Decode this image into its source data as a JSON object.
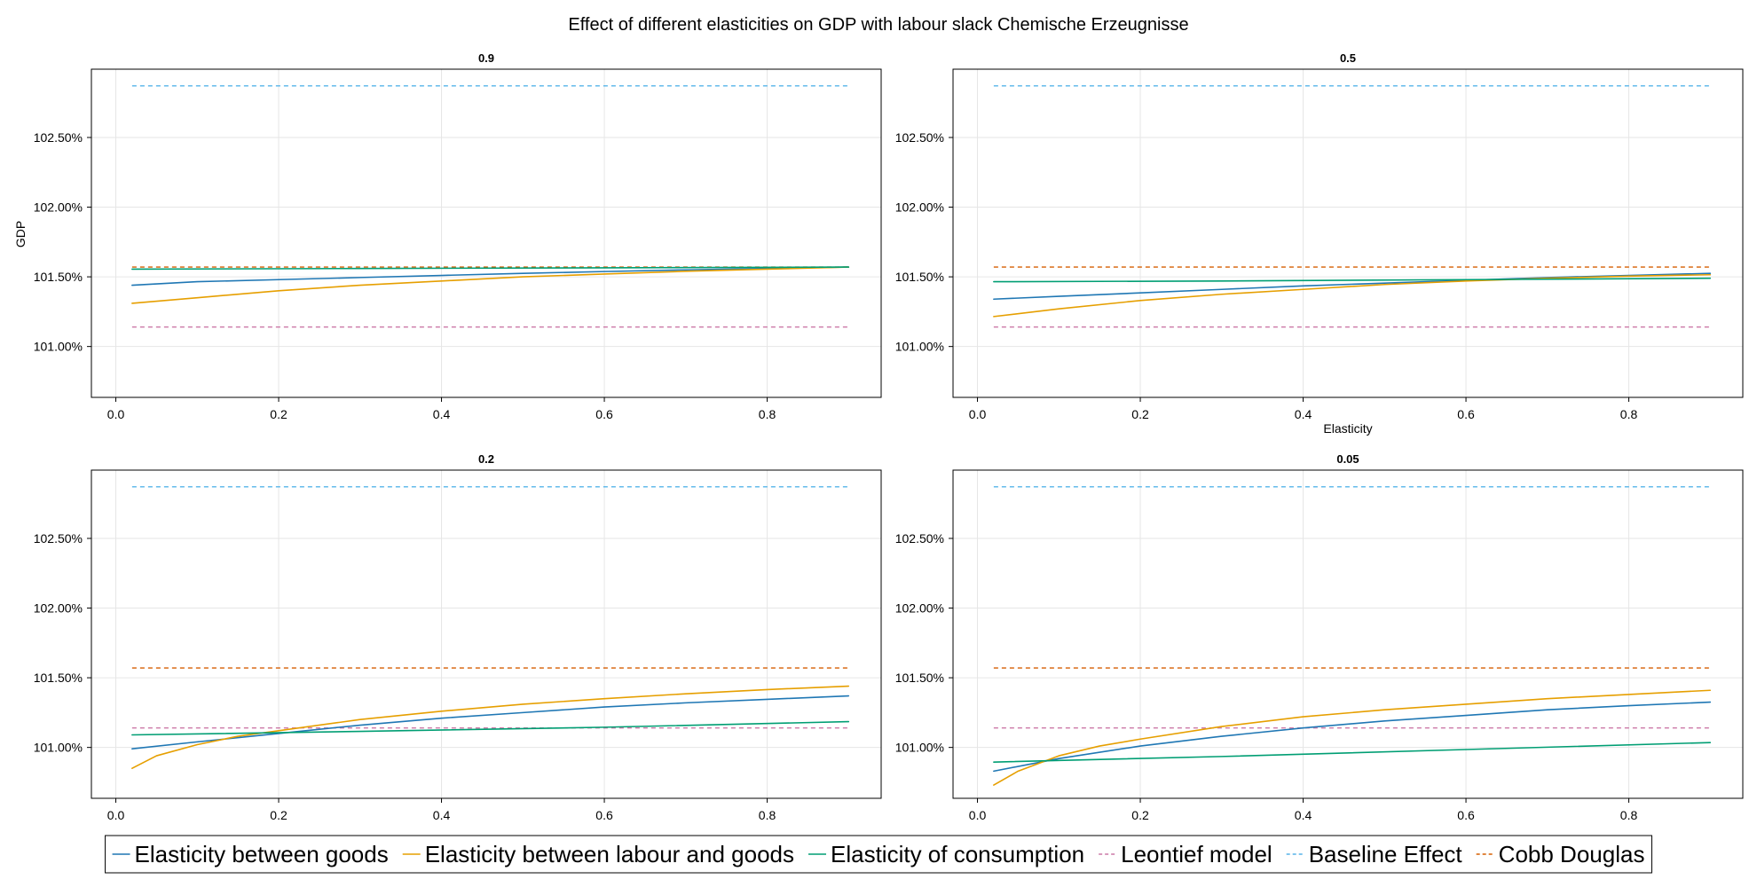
{
  "figure": {
    "title": "Effect of different elasticities on GDP with labour slack Chemische Erzeugnisse",
    "ylabel": "GDP",
    "xlabel": "Elasticity"
  },
  "legend": {
    "placement": "bottom-center",
    "entries": [
      {
        "label": "Elasticity between goods",
        "color": "#1f77b4",
        "style": "solid"
      },
      {
        "label": "Elasticity between labour and goods",
        "color": "#e69f00",
        "style": "solid"
      },
      {
        "label": "Elasticity of consumption",
        "color": "#009e73",
        "style": "solid"
      },
      {
        "label": "Leontief model",
        "color": "#cc79a7",
        "style": "dashed"
      },
      {
        "label": "Baseline Effect",
        "color": "#56b4e9",
        "style": "dashed"
      },
      {
        "label": "Cobb Douglas",
        "color": "#d55e00",
        "style": "dashed"
      }
    ]
  },
  "chart_data": [
    {
      "type": "line",
      "title": "0.9",
      "ylabel": "GDP",
      "xlabel": "",
      "xlim": [
        -0.03,
        0.94
      ],
      "ylim": [
        100.635,
        102.99
      ],
      "xticks": [
        "0.0",
        "0.2",
        "0.4",
        "0.6",
        "0.8"
      ],
      "yticks": [
        "101.00%",
        "101.50%",
        "102.00%",
        "102.50%"
      ],
      "grid": true,
      "series": [
        {
          "name": "Elasticity between goods",
          "x": [
            0.02,
            0.1,
            0.2,
            0.3,
            0.4,
            0.5,
            0.6,
            0.7,
            0.8,
            0.9
          ],
          "y": [
            101.44,
            101.465,
            101.48,
            101.495,
            101.51,
            101.525,
            101.538,
            101.55,
            101.56,
            101.57
          ]
        },
        {
          "name": "Elasticity between labour and goods",
          "x": [
            0.02,
            0.1,
            0.2,
            0.3,
            0.4,
            0.5,
            0.6,
            0.7,
            0.8,
            0.9
          ],
          "y": [
            101.31,
            101.35,
            101.4,
            101.44,
            101.47,
            101.5,
            101.52,
            101.54,
            101.555,
            101.57
          ]
        },
        {
          "name": "Elasticity of consumption",
          "x": [
            0.02,
            0.3,
            0.6,
            0.9
          ],
          "y": [
            101.555,
            101.56,
            101.565,
            101.57
          ]
        },
        {
          "name": "Leontief model",
          "x": [
            0.02,
            0.9
          ],
          "y": [
            101.14,
            101.14
          ]
        },
        {
          "name": "Baseline Effect",
          "x": [
            0.02,
            0.9
          ],
          "y": [
            102.87,
            102.87
          ]
        },
        {
          "name": "Cobb Douglas",
          "x": [
            0.02,
            0.9
          ],
          "y": [
            101.57,
            101.57
          ]
        }
      ]
    },
    {
      "type": "line",
      "title": "0.5",
      "ylabel": "",
      "xlabel": "Elasticity",
      "xlim": [
        -0.03,
        0.94
      ],
      "ylim": [
        100.635,
        102.99
      ],
      "xticks": [
        "0.0",
        "0.2",
        "0.4",
        "0.6",
        "0.8"
      ],
      "yticks": [
        "101.00%",
        "101.50%",
        "102.00%",
        "102.50%"
      ],
      "grid": true,
      "series": [
        {
          "name": "Elasticity between goods",
          "x": [
            0.02,
            0.1,
            0.2,
            0.3,
            0.4,
            0.5,
            0.6,
            0.7,
            0.8,
            0.9
          ],
          "y": [
            101.34,
            101.36,
            101.385,
            101.41,
            101.435,
            101.455,
            101.475,
            101.495,
            101.51,
            101.525
          ]
        },
        {
          "name": "Elasticity between labour and goods",
          "x": [
            0.02,
            0.1,
            0.2,
            0.3,
            0.4,
            0.5,
            0.6,
            0.7,
            0.8,
            0.9
          ],
          "y": [
            101.215,
            101.27,
            101.33,
            101.375,
            101.41,
            101.445,
            101.47,
            101.49,
            101.505,
            101.515
          ]
        },
        {
          "name": "Elasticity of consumption",
          "x": [
            0.02,
            0.3,
            0.6,
            0.9
          ],
          "y": [
            101.465,
            101.47,
            101.48,
            101.49
          ]
        },
        {
          "name": "Leontief model",
          "x": [
            0.02,
            0.9
          ],
          "y": [
            101.14,
            101.14
          ]
        },
        {
          "name": "Baseline Effect",
          "x": [
            0.02,
            0.9
          ],
          "y": [
            102.87,
            102.87
          ]
        },
        {
          "name": "Cobb Douglas",
          "x": [
            0.02,
            0.9
          ],
          "y": [
            101.57,
            101.57
          ]
        }
      ]
    },
    {
      "type": "line",
      "title": "0.2",
      "ylabel": "",
      "xlabel": "",
      "xlim": [
        -0.03,
        0.94
      ],
      "ylim": [
        100.635,
        102.99
      ],
      "xticks": [
        "0.0",
        "0.2",
        "0.4",
        "0.6",
        "0.8"
      ],
      "yticks": [
        "101.00%",
        "101.50%",
        "102.00%",
        "102.50%"
      ],
      "grid": true,
      "series": [
        {
          "name": "Elasticity between goods",
          "x": [
            0.02,
            0.1,
            0.2,
            0.3,
            0.4,
            0.5,
            0.6,
            0.7,
            0.8,
            0.9
          ],
          "y": [
            100.99,
            101.04,
            101.1,
            101.16,
            101.21,
            101.25,
            101.29,
            101.32,
            101.345,
            101.37
          ]
        },
        {
          "name": "Elasticity between labour and goods",
          "x": [
            0.02,
            0.05,
            0.1,
            0.15,
            0.2,
            0.3,
            0.4,
            0.5,
            0.6,
            0.7,
            0.8,
            0.9
          ],
          "y": [
            100.85,
            100.94,
            101.02,
            101.08,
            101.12,
            101.2,
            101.26,
            101.31,
            101.35,
            101.385,
            101.415,
            101.44
          ]
        },
        {
          "name": "Elasticity of consumption",
          "x": [
            0.02,
            0.3,
            0.6,
            0.9
          ],
          "y": [
            101.09,
            101.115,
            101.145,
            101.185
          ]
        },
        {
          "name": "Leontief model",
          "x": [
            0.02,
            0.9
          ],
          "y": [
            101.14,
            101.14
          ]
        },
        {
          "name": "Baseline Effect",
          "x": [
            0.02,
            0.9
          ],
          "y": [
            102.87,
            102.87
          ]
        },
        {
          "name": "Cobb Douglas",
          "x": [
            0.02,
            0.9
          ],
          "y": [
            101.57,
            101.57
          ]
        }
      ]
    },
    {
      "type": "line",
      "title": "0.05",
      "ylabel": "",
      "xlabel": "",
      "xlim": [
        -0.03,
        0.94
      ],
      "ylim": [
        100.635,
        102.99
      ],
      "xticks": [
        "0.0",
        "0.2",
        "0.4",
        "0.6",
        "0.8"
      ],
      "yticks": [
        "101.00%",
        "101.50%",
        "102.00%",
        "102.50%"
      ],
      "grid": true,
      "series": [
        {
          "name": "Elasticity between goods",
          "x": [
            0.02,
            0.1,
            0.2,
            0.3,
            0.4,
            0.5,
            0.6,
            0.7,
            0.8,
            0.9
          ],
          "y": [
            100.83,
            100.92,
            101.01,
            101.08,
            101.14,
            101.19,
            101.23,
            101.27,
            101.3,
            101.325
          ]
        },
        {
          "name": "Elasticity between labour and goods",
          "x": [
            0.02,
            0.05,
            0.1,
            0.15,
            0.2,
            0.3,
            0.4,
            0.5,
            0.6,
            0.7,
            0.8,
            0.9
          ],
          "y": [
            100.73,
            100.83,
            100.94,
            101.01,
            101.06,
            101.15,
            101.22,
            101.27,
            101.31,
            101.35,
            101.38,
            101.41
          ]
        },
        {
          "name": "Elasticity of consumption",
          "x": [
            0.02,
            0.3,
            0.6,
            0.9
          ],
          "y": [
            100.895,
            100.935,
            100.985,
            101.035
          ]
        },
        {
          "name": "Leontief model",
          "x": [
            0.02,
            0.9
          ],
          "y": [
            101.14,
            101.14
          ]
        },
        {
          "name": "Baseline Effect",
          "x": [
            0.02,
            0.9
          ],
          "y": [
            102.87,
            102.87
          ]
        },
        {
          "name": "Cobb Douglas",
          "x": [
            0.02,
            0.9
          ],
          "y": [
            101.57,
            101.57
          ]
        }
      ]
    }
  ]
}
